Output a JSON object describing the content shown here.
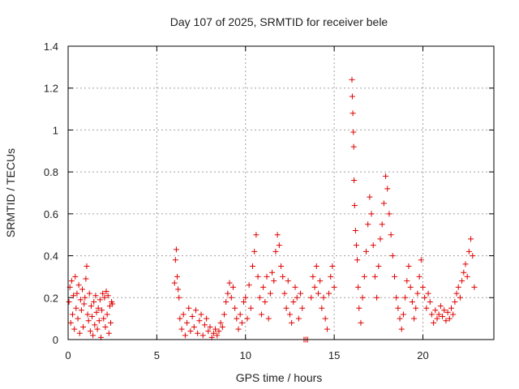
{
  "chart_data": {
    "type": "scatter",
    "title": "Day 107 of 2025, SRMTID for receiver bele",
    "xlabel": "GPS time / hours",
    "ylabel": "SRMTID / TECUs",
    "xlim": [
      0,
      24
    ],
    "ylim": [
      0,
      1.4
    ],
    "x_ticks": [
      0,
      5,
      10,
      15,
      20
    ],
    "x_tick_labels": [
      "0",
      "5",
      "10",
      "15",
      "20"
    ],
    "y_ticks": [
      0,
      0.2,
      0.4,
      0.6,
      0.8,
      1,
      1.2,
      1.4
    ],
    "y_tick_labels": [
      "0",
      "0.2",
      "0.4",
      "0.6",
      "0.8",
      "1",
      "1.2",
      "1.4"
    ],
    "grid": true,
    "marker": "plus",
    "color": "#e00000",
    "series": [
      {
        "name": "SRMTID",
        "points": [
          [
            0.05,
            0.18
          ],
          [
            0.1,
            0.25
          ],
          [
            0.15,
            0.08
          ],
          [
            0.2,
            0.28
          ],
          [
            0.25,
            0.12
          ],
          [
            0.3,
            0.21
          ],
          [
            0.35,
            0.05
          ],
          [
            0.4,
            0.3
          ],
          [
            0.45,
            0.15
          ],
          [
            0.5,
            0.22
          ],
          [
            0.55,
            0.1
          ],
          [
            0.6,
            0.26
          ],
          [
            0.65,
            0.03
          ],
          [
            0.7,
            0.19
          ],
          [
            0.75,
            0.14
          ],
          [
            0.8,
            0.24
          ],
          [
            0.85,
            0.06
          ],
          [
            0.9,
            0.17
          ],
          [
            0.95,
            0.2
          ],
          [
            1.0,
            0.29
          ],
          [
            1.05,
            0.35
          ],
          [
            1.1,
            0.12
          ],
          [
            1.15,
            0.09
          ],
          [
            1.2,
            0.22
          ],
          [
            1.25,
            0.04
          ],
          [
            1.3,
            0.16
          ],
          [
            1.35,
            0.11
          ],
          [
            1.4,
            0.02
          ],
          [
            1.45,
            0.18
          ],
          [
            1.5,
            0.07
          ],
          [
            1.55,
            0.21
          ],
          [
            1.6,
            0.13
          ],
          [
            1.65,
            0.05
          ],
          [
            1.7,
            0.15
          ],
          [
            1.75,
            0.09
          ],
          [
            1.8,
            0.19
          ],
          [
            1.85,
            0.01
          ],
          [
            1.9,
            0.14
          ],
          [
            1.95,
            0.22
          ],
          [
            2.0,
            0.1
          ],
          [
            2.05,
            0.2
          ],
          [
            2.1,
            0.06
          ],
          [
            2.15,
            0.23
          ],
          [
            2.2,
            0.12
          ],
          [
            2.25,
            0.21
          ],
          [
            2.3,
            0.03
          ],
          [
            2.35,
            0.16
          ],
          [
            2.4,
            0.08
          ],
          [
            2.45,
            0.18
          ],
          [
            2.5,
            0.17
          ],
          [
            6.0,
            0.27
          ],
          [
            6.05,
            0.38
          ],
          [
            6.1,
            0.43
          ],
          [
            6.15,
            0.3
          ],
          [
            6.2,
            0.24
          ],
          [
            6.25,
            0.2
          ],
          [
            6.3,
            0.1
          ],
          [
            6.4,
            0.05
          ],
          [
            6.5,
            0.12
          ],
          [
            6.6,
            0.02
          ],
          [
            6.7,
            0.08
          ],
          [
            6.8,
            0.15
          ],
          [
            6.9,
            0.04
          ],
          [
            7.0,
            0.11
          ],
          [
            7.1,
            0.06
          ],
          [
            7.2,
            0.14
          ],
          [
            7.3,
            0.03
          ],
          [
            7.4,
            0.09
          ],
          [
            7.5,
            0.12
          ],
          [
            7.6,
            0.02
          ],
          [
            7.7,
            0.07
          ],
          [
            7.8,
            0.1
          ],
          [
            7.9,
            0.04
          ],
          [
            8.0,
            0.06
          ],
          [
            8.1,
            0.01
          ],
          [
            8.2,
            0.03
          ],
          [
            8.3,
            0.05
          ],
          [
            8.4,
            0.02
          ],
          [
            8.5,
            0.04
          ],
          [
            8.6,
            0.08
          ],
          [
            8.7,
            0.06
          ],
          [
            8.8,
            0.12
          ],
          [
            8.9,
            0.18
          ],
          [
            9.0,
            0.22
          ],
          [
            9.1,
            0.27
          ],
          [
            9.2,
            0.2
          ],
          [
            9.3,
            0.25
          ],
          [
            9.4,
            0.15
          ],
          [
            9.5,
            0.1
          ],
          [
            9.6,
            0.05
          ],
          [
            9.7,
            0.12
          ],
          [
            9.8,
            0.08
          ],
          [
            9.9,
            0.18
          ],
          [
            10.0,
            0.2
          ],
          [
            10.1,
            0.1
          ],
          [
            10.2,
            0.26
          ],
          [
            10.3,
            0.15
          ],
          [
            10.4,
            0.35
          ],
          [
            10.5,
            0.42
          ],
          [
            10.6,
            0.5
          ],
          [
            10.7,
            0.3
          ],
          [
            10.8,
            0.2
          ],
          [
            10.9,
            0.12
          ],
          [
            11.0,
            0.25
          ],
          [
            11.1,
            0.18
          ],
          [
            11.2,
            0.3
          ],
          [
            11.3,
            0.1
          ],
          [
            11.4,
            0.22
          ],
          [
            11.5,
            0.32
          ],
          [
            11.6,
            0.28
          ],
          [
            11.7,
            0.42
          ],
          [
            11.8,
            0.5
          ],
          [
            11.9,
            0.45
          ],
          [
            12.0,
            0.35
          ],
          [
            12.1,
            0.3
          ],
          [
            12.2,
            0.22
          ],
          [
            12.3,
            0.15
          ],
          [
            12.4,
            0.28
          ],
          [
            12.5,
            0.12
          ],
          [
            12.6,
            0.08
          ],
          [
            12.7,
            0.18
          ],
          [
            12.8,
            0.25
          ],
          [
            12.9,
            0.2
          ],
          [
            13.0,
            0.1
          ],
          [
            13.1,
            0.22
          ],
          [
            13.2,
            0.15
          ],
          [
            13.3,
            0.0
          ],
          [
            13.4,
            0.0
          ],
          [
            13.5,
            0.0
          ],
          [
            13.7,
            0.2
          ],
          [
            13.8,
            0.3
          ],
          [
            13.9,
            0.25
          ],
          [
            14.0,
            0.35
          ],
          [
            14.1,
            0.22
          ],
          [
            14.2,
            0.28
          ],
          [
            14.3,
            0.15
          ],
          [
            14.4,
            0.2
          ],
          [
            14.5,
            0.1
          ],
          [
            14.6,
            0.05
          ],
          [
            14.7,
            0.22
          ],
          [
            14.8,
            0.3
          ],
          [
            14.9,
            0.35
          ],
          [
            15.0,
            0.25
          ],
          [
            16.0,
            1.24
          ],
          [
            16.02,
            1.16
          ],
          [
            16.05,
            1.08
          ],
          [
            16.08,
            0.99
          ],
          [
            16.1,
            0.92
          ],
          [
            16.12,
            0.76
          ],
          [
            16.15,
            0.64
          ],
          [
            16.2,
            0.52
          ],
          [
            16.25,
            0.45
          ],
          [
            16.3,
            0.38
          ],
          [
            16.35,
            0.25
          ],
          [
            16.4,
            0.15
          ],
          [
            16.5,
            0.08
          ],
          [
            16.6,
            0.2
          ],
          [
            16.7,
            0.3
          ],
          [
            16.8,
            0.42
          ],
          [
            16.9,
            0.55
          ],
          [
            17.0,
            0.68
          ],
          [
            17.1,
            0.6
          ],
          [
            17.2,
            0.45
          ],
          [
            17.3,
            0.3
          ],
          [
            17.4,
            0.2
          ],
          [
            17.5,
            0.35
          ],
          [
            17.6,
            0.48
          ],
          [
            17.7,
            0.55
          ],
          [
            17.8,
            0.65
          ],
          [
            17.9,
            0.78
          ],
          [
            18.0,
            0.72
          ],
          [
            18.1,
            0.6
          ],
          [
            18.2,
            0.5
          ],
          [
            18.3,
            0.4
          ],
          [
            18.4,
            0.3
          ],
          [
            18.5,
            0.2
          ],
          [
            18.6,
            0.15
          ],
          [
            18.7,
            0.1
          ],
          [
            18.8,
            0.05
          ],
          [
            18.9,
            0.12
          ],
          [
            19.0,
            0.2
          ],
          [
            19.1,
            0.28
          ],
          [
            19.2,
            0.35
          ],
          [
            19.3,
            0.25
          ],
          [
            19.4,
            0.18
          ],
          [
            19.5,
            0.1
          ],
          [
            19.6,
            0.15
          ],
          [
            19.7,
            0.22
          ],
          [
            19.8,
            0.3
          ],
          [
            19.9,
            0.38
          ],
          [
            20.0,
            0.25
          ],
          [
            20.1,
            0.2
          ],
          [
            20.2,
            0.15
          ],
          [
            20.3,
            0.22
          ],
          [
            20.4,
            0.18
          ],
          [
            20.5,
            0.12
          ],
          [
            20.6,
            0.08
          ],
          [
            20.7,
            0.14
          ],
          [
            20.8,
            0.1
          ],
          [
            20.9,
            0.12
          ],
          [
            21.0,
            0.16
          ],
          [
            21.1,
            0.11
          ],
          [
            21.2,
            0.14
          ],
          [
            21.3,
            0.09
          ],
          [
            21.4,
            0.13
          ],
          [
            21.5,
            0.1
          ],
          [
            21.6,
            0.15
          ],
          [
            21.7,
            0.12
          ],
          [
            21.8,
            0.18
          ],
          [
            21.9,
            0.22
          ],
          [
            22.0,
            0.25
          ],
          [
            22.1,
            0.2
          ],
          [
            22.2,
            0.28
          ],
          [
            22.3,
            0.32
          ],
          [
            22.4,
            0.36
          ],
          [
            22.5,
            0.3
          ],
          [
            22.6,
            0.42
          ],
          [
            22.7,
            0.48
          ],
          [
            22.8,
            0.4
          ],
          [
            22.9,
            0.25
          ]
        ]
      }
    ]
  }
}
